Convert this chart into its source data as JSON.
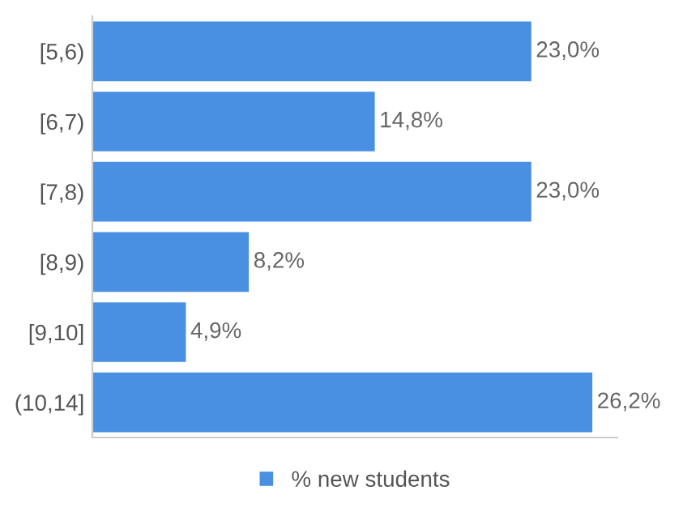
{
  "chart_data": {
    "type": "bar",
    "orientation": "horizontal",
    "categories": [
      "[5,6)",
      "[6,7)",
      "[7,8)",
      "[8,9)",
      "[9,10]",
      "(10,14]"
    ],
    "series": [
      {
        "name": "% new students",
        "color": "#4a90e2",
        "values": [
          23.0,
          14.8,
          23.0,
          8.2,
          4.9,
          26.2
        ],
        "value_labels": [
          "23,0%",
          "14,8%",
          "23,0%",
          "8,2%",
          "4,9%",
          "26,2%"
        ]
      }
    ],
    "legend": "bottom"
  }
}
